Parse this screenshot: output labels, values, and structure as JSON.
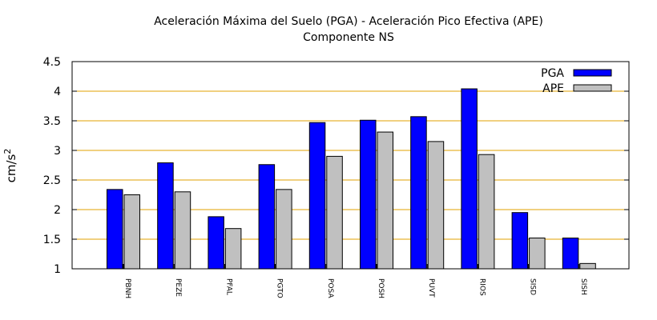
{
  "chart_data": {
    "type": "bar",
    "title": "Aceleración Máxima del Suelo (PGA) -  Aceleración Pico Efectiva (APE)",
    "subtitle": "Componente NS",
    "xlabel": "",
    "ylabel": "cm/s",
    "ylabel_superscript": "2",
    "ylim": [
      1,
      4.5
    ],
    "yticks": [
      1,
      1.5,
      2,
      2.5,
      3,
      3.5,
      4,
      4.5
    ],
    "ytick_labels": [
      "1",
      "1.5",
      "2",
      "2.5",
      "3",
      "3.5",
      "4",
      "4.5"
    ],
    "grid": true,
    "legend_position": "top-right",
    "categories": [
      "PBNH",
      "PEZE",
      "PFAL",
      "PGTO",
      "POSA",
      "POSH",
      "PUVT",
      "RIOS",
      "SISD",
      "SISH"
    ],
    "series": [
      {
        "name": "PGA",
        "color": "#0000ff",
        "values": [
          2.34,
          2.79,
          1.88,
          2.76,
          3.47,
          3.51,
          3.57,
          4.04,
          1.95,
          1.52
        ]
      },
      {
        "name": "APE",
        "color": "#c0c0c0",
        "values": [
          2.25,
          2.3,
          1.68,
          2.34,
          2.9,
          3.31,
          3.15,
          2.93,
          1.52,
          1.09
        ]
      }
    ],
    "grid_color": "#e0a000"
  }
}
